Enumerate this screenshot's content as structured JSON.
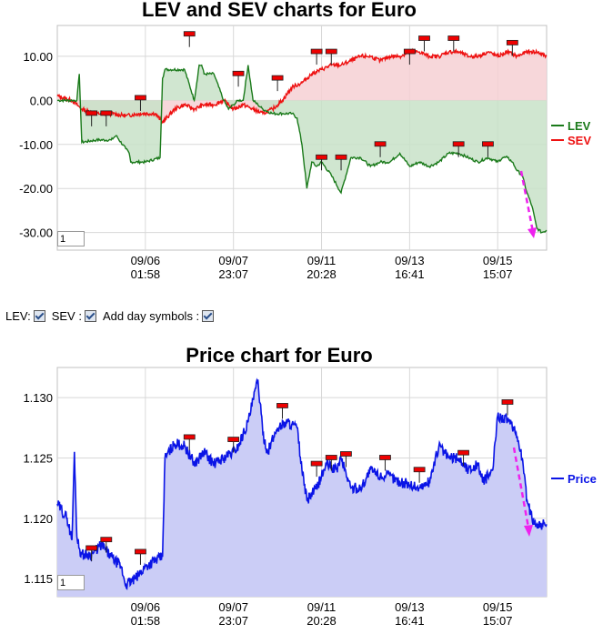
{
  "charts": {
    "lev_sev": {
      "title": "LEV and SEV charts for Euro",
      "zoom_value": "1"
    },
    "price": {
      "title": "Price chart for Euro",
      "zoom_value": "1"
    }
  },
  "controls": {
    "lev_label": "LEV:",
    "sev_label": "SEV :",
    "day_symbols_label": "Add day symbols :",
    "lev_checked": true,
    "sev_checked": true,
    "day_symbols_checked": true
  },
  "colors": {
    "lev": "#1a7a1a",
    "sev": "#ee1111",
    "lev_fill": "#c8e2c8",
    "sev_fill": "#f6d0d3",
    "price": "#0a14e6",
    "price_fill": "#cbcdf6",
    "arrow": "#ee22ee",
    "grid": "#d8d8d8"
  },
  "chart_data": [
    {
      "type": "line",
      "title": "LEV and SEV charts for Euro",
      "x_ticks": [
        "09/06\n01:58",
        "09/07\n23:07",
        "09/11\n20:28",
        "09/13\n16:41",
        "09/15\n15:07"
      ],
      "x_range": [
        0,
        100
      ],
      "x_tick_positions": [
        18,
        36,
        54,
        72,
        90
      ],
      "y_ticks": [
        10.0,
        0.0,
        -10.0,
        -20.0,
        -30.0
      ],
      "y_tick_labels": [
        "10.00",
        "0.00",
        "-10.00",
        "-20.00",
        "-30.00"
      ],
      "ylim": [
        -34,
        17
      ],
      "legend": "right",
      "series": [
        {
          "name": "LEV",
          "x": [
            0,
            3,
            4,
            4.5,
            5,
            8,
            11,
            12,
            14,
            14.7,
            15,
            17,
            18,
            21,
            21.5,
            22,
            26,
            28,
            29,
            29.5,
            30,
            32,
            34,
            35,
            36,
            37,
            38,
            39,
            40,
            41,
            42,
            44,
            46,
            48,
            49,
            50,
            51,
            52,
            53,
            54,
            56,
            58,
            60,
            62,
            64,
            66,
            68,
            70,
            72,
            74,
            76,
            78,
            80,
            82,
            84,
            86,
            88,
            90,
            91,
            92,
            93,
            94,
            95,
            96,
            97,
            98,
            99,
            100
          ],
          "y": [
            0,
            0,
            0,
            6,
            -9.5,
            -9,
            -9,
            -8,
            -11,
            -12,
            -14,
            -14,
            -14,
            -13,
            5,
            7,
            7,
            0,
            8,
            8,
            6,
            6,
            0,
            -2,
            -1,
            0,
            0,
            8,
            0,
            -1,
            -2,
            -3,
            -3,
            -3,
            -4,
            -10,
            -20,
            -14,
            -15,
            -14,
            -17,
            -21,
            -13,
            -13,
            -15,
            -14,
            -14,
            -12,
            -15,
            -14,
            -15,
            -14,
            -12,
            -12,
            -13,
            -14,
            -13,
            -14,
            -13,
            -13,
            -14,
            -16,
            -17,
            -21,
            -24,
            -29,
            -30,
            -29.5
          ]
        },
        {
          "name": "SEV",
          "x": [
            0,
            3,
            5,
            8,
            11,
            14,
            17,
            20,
            21.5,
            24,
            26,
            28,
            30,
            32,
            34,
            36,
            38,
            40,
            42,
            44,
            46,
            48,
            50,
            52,
            54,
            56,
            58,
            60,
            62,
            64,
            66,
            68,
            70,
            72,
            74,
            76,
            78,
            80,
            82,
            84,
            86,
            88,
            90,
            92,
            94,
            96,
            98,
            100
          ],
          "y": [
            1,
            0,
            -2,
            -3,
            -3,
            -3.5,
            -3,
            -3,
            -5,
            -2,
            -1,
            -2,
            -1,
            -1,
            0,
            -2,
            -1,
            -2,
            -3,
            -2,
            0,
            3,
            4,
            6,
            7,
            8,
            8,
            9,
            10,
            10,
            9,
            10,
            10,
            11,
            11,
            10,
            10,
            11,
            11,
            10,
            10,
            11,
            10,
            11,
            10,
            11,
            11,
            10
          ]
        }
      ],
      "day_symbols_x": [
        7,
        10,
        17,
        27,
        37,
        45,
        53,
        54,
        56,
        58,
        66,
        72,
        75,
        81,
        82,
        88,
        93
      ],
      "day_symbols_y": [
        -3,
        -3,
        0.5,
        15,
        6,
        5,
        11,
        -13,
        11,
        -13,
        -10,
        11,
        14,
        14,
        -10,
        -10,
        13
      ]
    },
    {
      "type": "area",
      "title": "Price chart for Euro",
      "x_ticks": [
        "09/06\n01:58",
        "09/07\n23:07",
        "09/11\n20:28",
        "09/13\n16:41",
        "09/15\n15:07"
      ],
      "x_range": [
        0,
        100
      ],
      "x_tick_positions": [
        18,
        36,
        54,
        72,
        90
      ],
      "y_ticks": [
        1.13,
        1.125,
        1.12,
        1.115
      ],
      "y_tick_labels": [
        "1.130",
        "1.125",
        "1.120",
        "1.115"
      ],
      "ylim": [
        1.1135,
        1.1325
      ],
      "legend": "right",
      "series": [
        {
          "name": "Price",
          "x": [
            0,
            2,
            3,
            3.5,
            4,
            4.5,
            5,
            7,
            9,
            11,
            13,
            14,
            16,
            18,
            20,
            21.5,
            22,
            24,
            26,
            28,
            30,
            32,
            34,
            36,
            37,
            39,
            41,
            42,
            43,
            45,
            47,
            49,
            50,
            51,
            53,
            54,
            55,
            57,
            58,
            60,
            62,
            64,
            66,
            68,
            70,
            72,
            74,
            76,
            78,
            80,
            82,
            84,
            86,
            87,
            89,
            90,
            92,
            93,
            94,
            95,
            96,
            97,
            98,
            100
          ],
          "y": [
            1.1212,
            1.12,
            1.1182,
            1.1255,
            1.1185,
            1.1175,
            1.117,
            1.117,
            1.1178,
            1.1168,
            1.116,
            1.1145,
            1.115,
            1.116,
            1.1165,
            1.1168,
            1.125,
            1.1262,
            1.126,
            1.1245,
            1.1255,
            1.1245,
            1.125,
            1.1255,
            1.126,
            1.128,
            1.1315,
            1.127,
            1.1255,
            1.1275,
            1.128,
            1.1275,
            1.124,
            1.1215,
            1.1225,
            1.1235,
            1.1245,
            1.124,
            1.125,
            1.1225,
            1.1225,
            1.124,
            1.1235,
            1.1235,
            1.123,
            1.1228,
            1.1225,
            1.123,
            1.126,
            1.125,
            1.125,
            1.124,
            1.1245,
            1.123,
            1.124,
            1.1285,
            1.1282,
            1.1275,
            1.1268,
            1.125,
            1.1215,
            1.12,
            1.1195,
            1.1195
          ]
        }
      ],
      "day_symbols_x": [
        7,
        10,
        17,
        27,
        36,
        46,
        53,
        56,
        59,
        67,
        74,
        83,
        92
      ],
      "day_symbols_y": [
        1.1175,
        1.1182,
        1.1172,
        1.1267,
        1.1265,
        1.1293,
        1.1245,
        1.125,
        1.1253,
        1.125,
        1.124,
        1.1254,
        1.1296
      ]
    }
  ]
}
